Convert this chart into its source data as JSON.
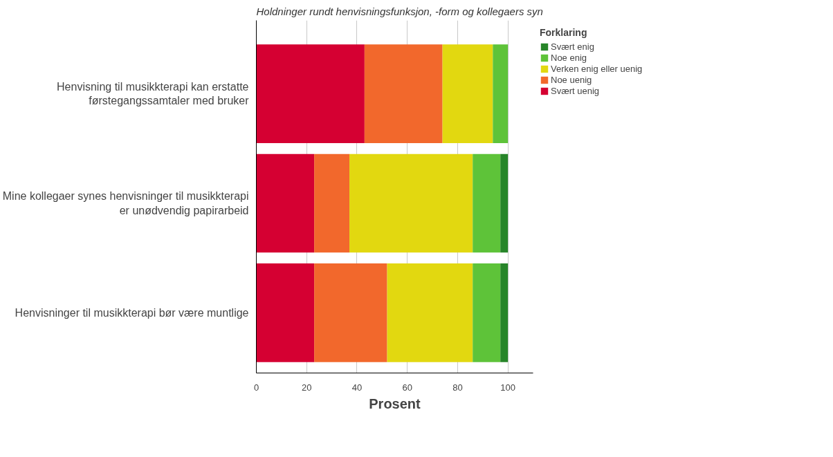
{
  "chart_data": {
    "type": "bar",
    "orientation": "horizontal",
    "stacked": true,
    "title": "Holdninger rundt henvisningsfunksjon, -form og kollegaers syn",
    "xlabel": "Prosent",
    "legend_title": "Forklaring",
    "categories": [
      "Henvisning til musikkterapi kan erstatte\nførstegangssamtaler med bruker",
      "Mine kollegaer synes henvisninger til musikkterapi\ner unødvendig papirarbeid",
      "Henvisninger til musikkterapi bør være muntlige"
    ],
    "series": [
      {
        "name": "Svært uenig",
        "color": "#d50032",
        "values": [
          43,
          23,
          23
        ]
      },
      {
        "name": "Noe uenig",
        "color": "#f2682c",
        "values": [
          31,
          14,
          29
        ]
      },
      {
        "name": "Verken enig eller uenig",
        "color": "#e2d810",
        "values": [
          20,
          49,
          34
        ]
      },
      {
        "name": "Noe enig",
        "color": "#5ec339",
        "values": [
          6,
          11,
          11
        ]
      },
      {
        "name": "Svært enig",
        "color": "#278529",
        "values": [
          0,
          3,
          3
        ]
      }
    ],
    "xlim": [
      0,
      110
    ],
    "xticks": [
      0,
      20,
      40,
      60,
      80,
      100
    ],
    "grid": "x",
    "legend": "top right"
  }
}
